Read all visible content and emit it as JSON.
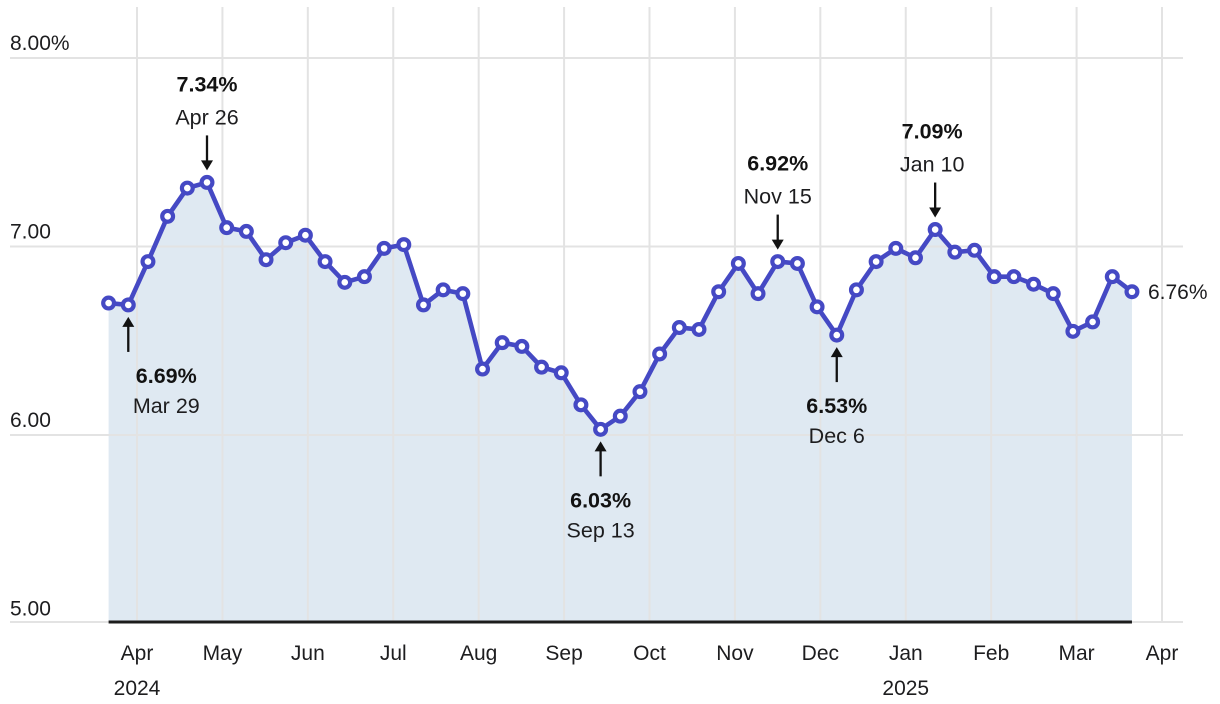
{
  "chart_data": {
    "type": "line",
    "x": [
      "Mar 22, 2024",
      "Mar 29, 2024",
      "Apr 5, 2024",
      "Apr 12, 2024",
      "Apr 19, 2024",
      "Apr 26, 2024",
      "May 3, 2024",
      "May 10, 2024",
      "May 17, 2024",
      "May 24, 2024",
      "May 31, 2024",
      "Jun 7, 2024",
      "Jun 14, 2024",
      "Jun 21, 2024",
      "Jun 28, 2024",
      "Jul 5, 2024",
      "Jul 12, 2024",
      "Jul 19, 2024",
      "Jul 26, 2024",
      "Aug 2, 2024",
      "Aug 9, 2024",
      "Aug 16, 2024",
      "Aug 23, 2024",
      "Aug 30, 2024",
      "Sep 6, 2024",
      "Sep 13, 2024",
      "Sep 20, 2024",
      "Sep 27, 2024",
      "Oct 4, 2024",
      "Oct 11, 2024",
      "Oct 18, 2024",
      "Oct 25, 2024",
      "Nov 1, 2024",
      "Nov 8, 2024",
      "Nov 15, 2024",
      "Nov 22, 2024",
      "Nov 29, 2024",
      "Dec 6, 2024",
      "Dec 13, 2024",
      "Dec 20, 2024",
      "Dec 27, 2024",
      "Jan 3, 2025",
      "Jan 10, 2025",
      "Jan 17, 2025",
      "Jan 24, 2025",
      "Jan 31, 2025",
      "Feb 7, 2025",
      "Feb 14, 2025",
      "Feb 21, 2025",
      "Feb 28, 2025",
      "Mar 7, 2025",
      "Mar 14, 2025",
      "Mar 21, 2025"
    ],
    "values": [
      6.7,
      6.69,
      6.92,
      7.16,
      7.31,
      7.34,
      7.1,
      7.08,
      6.93,
      7.02,
      7.06,
      6.92,
      6.81,
      6.84,
      6.99,
      7.01,
      6.69,
      6.77,
      6.75,
      6.35,
      6.49,
      6.47,
      6.36,
      6.33,
      6.16,
      6.03,
      6.1,
      6.23,
      6.43,
      6.57,
      6.56,
      6.76,
      6.91,
      6.75,
      6.92,
      6.91,
      6.68,
      6.53,
      6.77,
      6.92,
      6.99,
      6.94,
      7.09,
      6.97,
      6.98,
      6.84,
      6.84,
      6.8,
      6.75,
      6.55,
      6.6,
      6.84,
      6.76
    ],
    "ylim": [
      5.0,
      8.0
    ],
    "grid": true,
    "y_ticks": [
      {
        "label": "8.00%",
        "value": 8
      },
      {
        "label": "7.00",
        "value": 7
      },
      {
        "label": "6.00",
        "value": 6
      },
      {
        "label": "5.00",
        "value": 5
      }
    ],
    "x_ticks": [
      {
        "label": "Apr",
        "year": "2024"
      },
      {
        "label": "May"
      },
      {
        "label": "Jun"
      },
      {
        "label": "Jul"
      },
      {
        "label": "Aug"
      },
      {
        "label": "Sep"
      },
      {
        "label": "Oct"
      },
      {
        "label": "Nov"
      },
      {
        "label": "Dec"
      },
      {
        "label": "Jan",
        "year": "2025"
      },
      {
        "label": "Feb"
      },
      {
        "label": "Mar"
      },
      {
        "label": "Apr"
      }
    ],
    "annotations": [
      {
        "value_label": "6.69%",
        "date_label": "Mar 29",
        "point_index": 1,
        "direction": "up",
        "text_dx": 38
      },
      {
        "value_label": "7.34%",
        "date_label": "Apr 26",
        "point_index": 5,
        "direction": "down",
        "text_dx": 0
      },
      {
        "value_label": "6.03%",
        "date_label": "Sep 13",
        "point_index": 25,
        "direction": "up",
        "text_dx": 0
      },
      {
        "value_label": "6.92%",
        "date_label": "Nov 15",
        "point_index": 34,
        "direction": "down",
        "text_dx": 0
      },
      {
        "value_label": "6.53%",
        "date_label": "Dec 6",
        "point_index": 37,
        "direction": "up",
        "text_dx": 0
      },
      {
        "value_label": "7.09%",
        "date_label": "Jan 10",
        "point_index": 42,
        "direction": "down",
        "text_dx": -3
      }
    ],
    "end_label": "6.76%",
    "colors": {
      "line": "#4549c4",
      "area": "#dfe9f2",
      "grid": "#e3e3e3",
      "axis": "#1c1c1c",
      "text": "#1d1d1f",
      "annotation": "#121212"
    }
  }
}
